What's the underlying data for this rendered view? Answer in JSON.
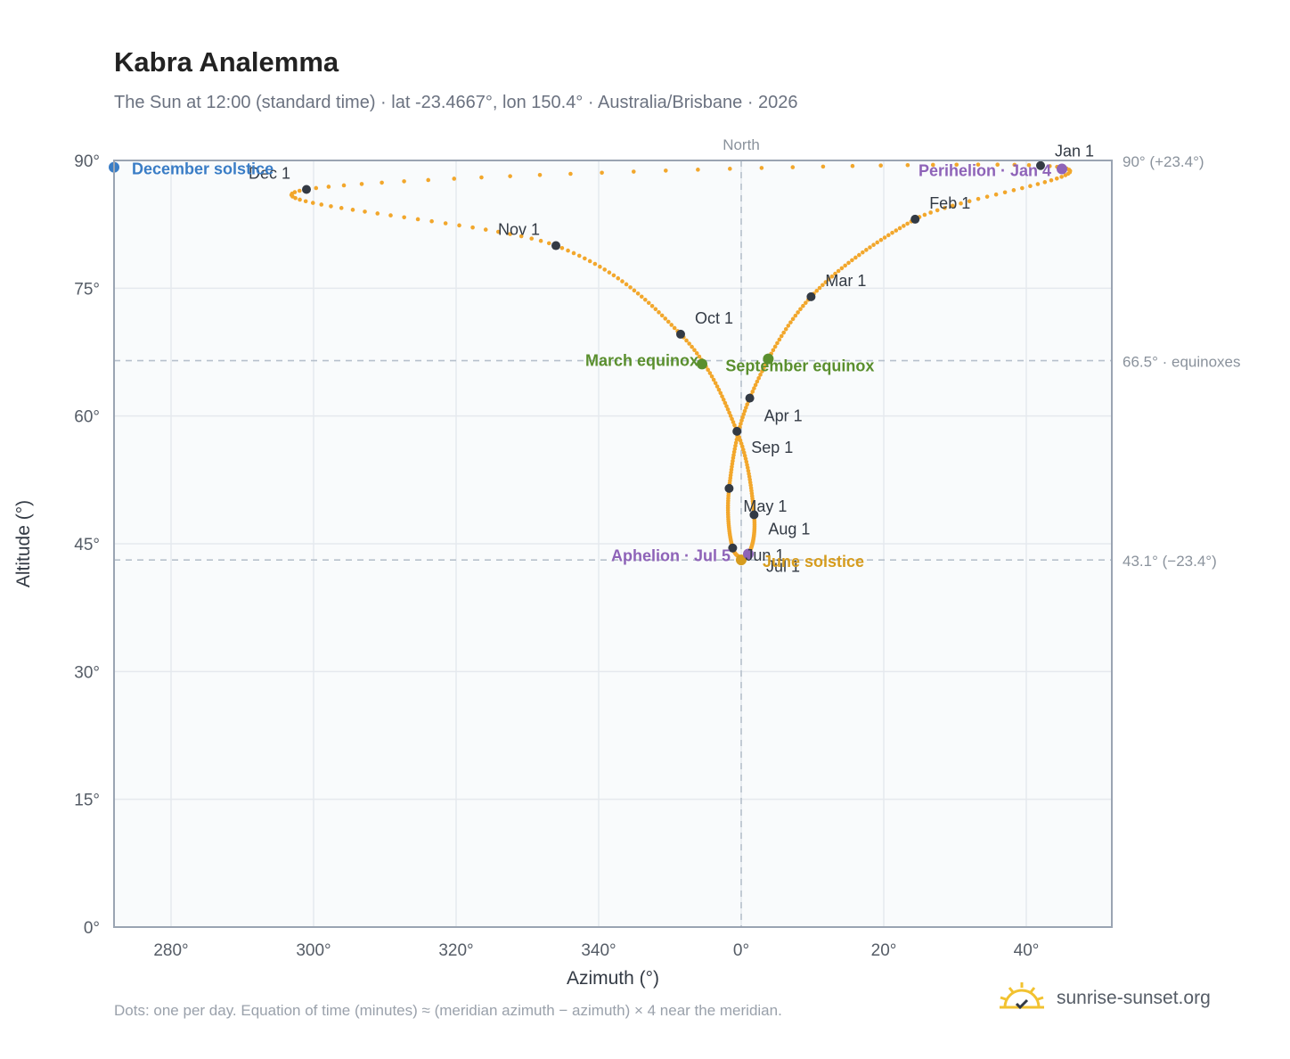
{
  "header": {
    "title": "Kabra Analemma",
    "subtitle": "The Sun at 12:00 (standard time) · lat -23.4667°, lon 150.4° · Australia/Brisbane · 2026"
  },
  "footer": {
    "note": "Dots: one per day. Equation of time (minutes) ≈ (meridian azimuth − azimuth) × 4 near the meridian.",
    "brand": "sunrise-sunset.org"
  },
  "colors": {
    "curve": "#f2a72c",
    "month_dot": "#333a44",
    "equinox": "#5a8f2e",
    "solstice_dec": "#3a7dc6",
    "solstice_jun": "#d69c1e",
    "apsis": "#8e63b8",
    "grid": "#e5e9ee",
    "axis": "#9aa4b2",
    "plot_bg": "#f9fbfc"
  },
  "chart_data": {
    "type": "scatter",
    "title": "Kabra Analemma",
    "xlabel": "Azimuth (°)",
    "ylabel": "Altitude (°)",
    "xlim": [
      -88,
      52
    ],
    "ylim": [
      0,
      90
    ],
    "x_ticks": [
      {
        "value": -80,
        "label": "280°"
      },
      {
        "value": -60,
        "label": "300°"
      },
      {
        "value": -40,
        "label": "320°"
      },
      {
        "value": -20,
        "label": "340°"
      },
      {
        "value": 0,
        "label": "0°"
      },
      {
        "value": 20,
        "label": "20°"
      },
      {
        "value": 40,
        "label": "40°"
      }
    ],
    "y_ticks": [
      {
        "value": 0,
        "label": "0°"
      },
      {
        "value": 15,
        "label": "15°"
      },
      {
        "value": 30,
        "label": "30°"
      },
      {
        "value": 45,
        "label": "45°"
      },
      {
        "value": 60,
        "label": "60°"
      },
      {
        "value": 75,
        "label": "75°"
      },
      {
        "value": 90,
        "label": "90°"
      }
    ],
    "meridian_label": "North",
    "reference_lines": [
      {
        "y": 90,
        "label": "90° (+23.4°)"
      },
      {
        "y": 66.5,
        "label": "66.5° · equinoxes"
      },
      {
        "y": 43.1,
        "label": "43.1° (−23.4°)"
      }
    ],
    "month_points": [
      {
        "label": "Jan 1",
        "az": 42.0,
        "alt": 89.4
      },
      {
        "label": "Feb 1",
        "az": 24.4,
        "alt": 83.1
      },
      {
        "label": "Mar 1",
        "az": 9.8,
        "alt": 74.0
      },
      {
        "label": "Apr 1",
        "az": 1.2,
        "alt": 62.1
      },
      {
        "label": "May 1",
        "az": -1.7,
        "alt": 51.5
      },
      {
        "label": "Jun 1",
        "az": -1.2,
        "alt": 44.5
      },
      {
        "label": "Jul 1",
        "az": 1.0,
        "alt": 43.8
      },
      {
        "label": "Aug 1",
        "az": 1.8,
        "alt": 48.4
      },
      {
        "label": "Sep 1",
        "az": -0.6,
        "alt": 58.2
      },
      {
        "label": "Oct 1",
        "az": -8.5,
        "alt": 69.6
      },
      {
        "label": "Nov 1",
        "az": -26.0,
        "alt": 80.0
      },
      {
        "label": "Dec 1",
        "az": -61.0,
        "alt": 86.6
      }
    ],
    "events": [
      {
        "label": "March equinox",
        "az": -5.5,
        "alt": 66.1,
        "kind": "equinox"
      },
      {
        "label": "September equinox",
        "az": 3.8,
        "alt": 66.7,
        "kind": "equinox"
      },
      {
        "label": "June solstice",
        "az": 0.0,
        "alt": 43.1,
        "kind": "solstice_jun"
      },
      {
        "label": "December solstice",
        "az": -88.0,
        "alt": 89.2,
        "kind": "solstice_dec"
      },
      {
        "label": "Perihelion · Jan 4",
        "az": 45.0,
        "alt": 89.0,
        "kind": "apsis"
      },
      {
        "label": "Aphelion · Jul 5",
        "az": 1.0,
        "alt": 43.8,
        "kind": "apsis"
      }
    ]
  }
}
